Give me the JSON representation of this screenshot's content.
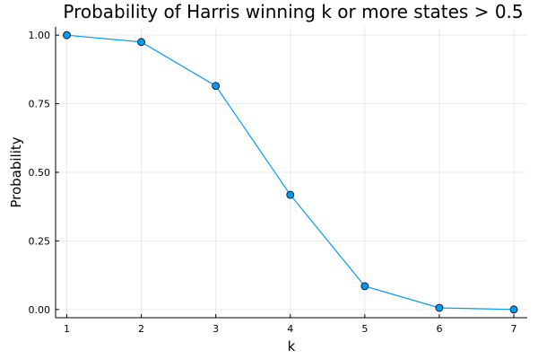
{
  "chart_data": {
    "type": "line",
    "title": "Probability of Harris winning k or more states > 0.5",
    "xlabel": "k",
    "ylabel": "Probability",
    "x": [
      1,
      2,
      3,
      4,
      5,
      6,
      7
    ],
    "series": [
      {
        "values": [
          1.0,
          0.975,
          0.815,
          0.418,
          0.085,
          0.006,
          0.0
        ],
        "color": "#009af9",
        "marker": "circle"
      }
    ],
    "xlim": [
      0.85,
      7.18
    ],
    "ylim": [
      -0.03,
      1.03
    ],
    "xticks": [
      1,
      2,
      3,
      4,
      5,
      6,
      7
    ],
    "xtick_labels": [
      "1",
      "2",
      "3",
      "4",
      "5",
      "6",
      "7"
    ],
    "yticks": [
      0,
      0.25,
      0.5,
      0.75,
      1.0
    ],
    "ytick_labels": [
      "0.00",
      "0.25",
      "0.50",
      "0.75",
      "1.00"
    ],
    "grid": true,
    "legend": false
  }
}
